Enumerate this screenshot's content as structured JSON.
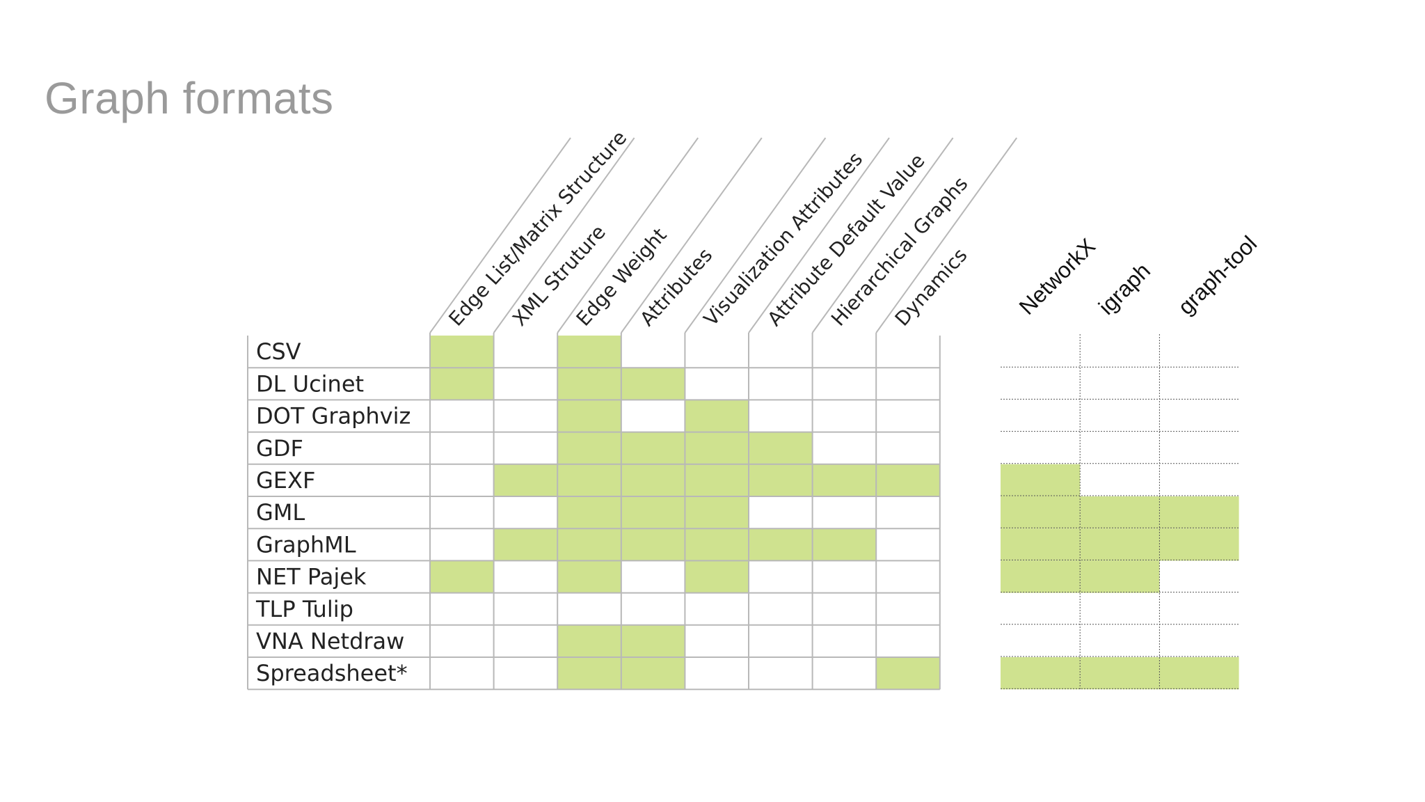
{
  "title": "Graph formats",
  "colors": {
    "supported": "#cfe28f",
    "grid": "#b8b8b8",
    "dotted": "#555555"
  },
  "features": [
    "Edge List/Matrix Structure",
    "XML Struture",
    "Edge Weight",
    "Attributes",
    "Visualization Attributes",
    "Attribute Default Value",
    "Hierarchical Graphs",
    "Dynamics"
  ],
  "libraries": [
    "NetworkX",
    "igraph",
    "graph-tool"
  ],
  "formats": [
    {
      "name": "CSV",
      "features": [
        1,
        0,
        1,
        0,
        0,
        0,
        0,
        0
      ],
      "libraries": [
        0,
        0,
        0
      ]
    },
    {
      "name": "DL Ucinet",
      "features": [
        1,
        0,
        1,
        1,
        0,
        0,
        0,
        0
      ],
      "libraries": [
        0,
        0,
        0
      ]
    },
    {
      "name": "DOT Graphviz",
      "features": [
        0,
        0,
        1,
        0,
        1,
        0,
        0,
        0
      ],
      "libraries": [
        0,
        0,
        0
      ]
    },
    {
      "name": "GDF",
      "features": [
        0,
        0,
        1,
        1,
        1,
        1,
        0,
        0
      ],
      "libraries": [
        0,
        0,
        0
      ]
    },
    {
      "name": "GEXF",
      "features": [
        0,
        1,
        1,
        1,
        1,
        1,
        1,
        1
      ],
      "libraries": [
        1,
        0,
        0
      ]
    },
    {
      "name": "GML",
      "features": [
        0,
        0,
        1,
        1,
        1,
        0,
        0,
        0
      ],
      "libraries": [
        1,
        1,
        1
      ]
    },
    {
      "name": "GraphML",
      "features": [
        0,
        1,
        1,
        1,
        1,
        1,
        1,
        0
      ],
      "libraries": [
        1,
        1,
        1
      ]
    },
    {
      "name": "NET Pajek",
      "features": [
        1,
        0,
        1,
        0,
        1,
        0,
        0,
        0
      ],
      "libraries": [
        1,
        1,
        0
      ]
    },
    {
      "name": "TLP Tulip",
      "features": [
        0,
        0,
        0,
        0,
        0,
        0,
        0,
        0
      ],
      "libraries": [
        0,
        0,
        0
      ]
    },
    {
      "name": "VNA Netdraw",
      "features": [
        0,
        0,
        1,
        1,
        0,
        0,
        0,
        0
      ],
      "libraries": [
        0,
        0,
        0
      ]
    },
    {
      "name": "Spreadsheet*",
      "features": [
        0,
        0,
        1,
        1,
        0,
        0,
        0,
        1
      ],
      "libraries": [
        1,
        1,
        1
      ]
    }
  ]
}
